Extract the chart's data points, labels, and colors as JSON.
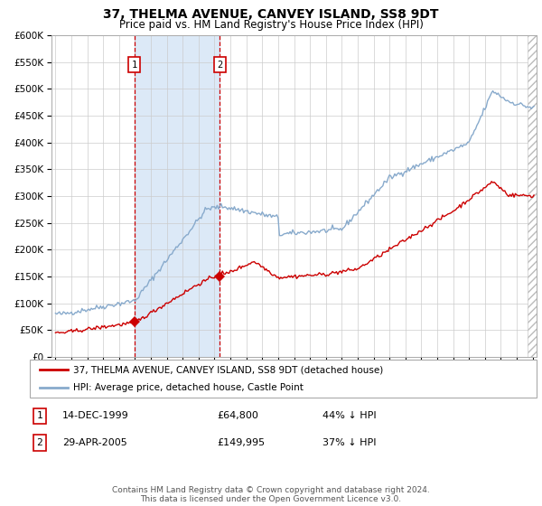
{
  "title": "37, THELMA AVENUE, CANVEY ISLAND, SS8 9DT",
  "subtitle": "Price paid vs. HM Land Registry's House Price Index (HPI)",
  "legend_line1": "37, THELMA AVENUE, CANVEY ISLAND, SS8 9DT (detached house)",
  "legend_line2": "HPI: Average price, detached house, Castle Point",
  "annotation1_date": "14-DEC-1999",
  "annotation1_price": "£64,800",
  "annotation1_hpi": "44% ↓ HPI",
  "annotation2_date": "29-APR-2005",
  "annotation2_price": "£149,995",
  "annotation2_hpi": "37% ↓ HPI",
  "footer": "Contains HM Land Registry data © Crown copyright and database right 2024.\nThis data is licensed under the Open Government Licence v3.0.",
  "year_start": 1995,
  "year_end": 2025,
  "ylim_max": 600000,
  "marker1_year": 1999.96,
  "marker1_price": 64800,
  "marker2_year": 2005.33,
  "marker2_price": 149995,
  "vline1_year": 1999.96,
  "vline2_year": 2005.33,
  "shade_color": "#dce9f7",
  "red_color": "#cc0000",
  "blue_color": "#88aacc",
  "vline_color": "#cc0000",
  "background_color": "#ffffff",
  "grid_color": "#cccccc",
  "hatch_color": "#bbbbbb"
}
